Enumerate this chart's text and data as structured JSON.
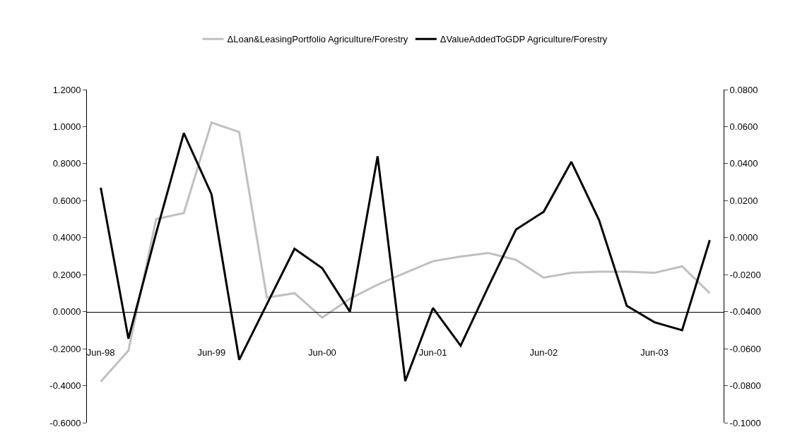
{
  "chart_data": {
    "type": "line",
    "categories": [
      "Jun-98",
      null,
      null,
      null,
      "Jun-99",
      null,
      null,
      null,
      "Jun-00",
      null,
      null,
      null,
      "Jun-01",
      null,
      null,
      null,
      "Jun-02",
      null,
      null,
      null,
      "Jun-03",
      null,
      null
    ],
    "series": [
      {
        "name": "ΔLoan&LeasingPortfolio Agriculture/Forestry",
        "color": "#c0c0c0",
        "values": [
          -0.378,
          -0.21,
          0.5,
          0.533,
          1.022,
          0.971,
          0.076,
          0.1,
          -0.032,
          0.07,
          0.146,
          0.21,
          0.273,
          0.298,
          0.317,
          0.28,
          0.184,
          0.21,
          0.216,
          0.216,
          0.21,
          0.245,
          0.1
        ]
      },
      {
        "name": "ΔValueAddedToGDP Agriculture/Forestry",
        "color": "#000000",
        "axis": "y2",
        "values": [
          0.027,
          -0.0546,
          0.0024,
          0.0565,
          0.0235,
          -0.066,
          -0.036,
          -0.006,
          -0.0165,
          -0.04,
          0.044,
          -0.0775,
          -0.038,
          -0.0584,
          -0.0265,
          0.0044,
          0.014,
          0.041,
          0.0095,
          -0.0368,
          -0.0457,
          -0.05,
          -0.0013
        ]
      }
    ],
    "ylim": [
      -0.6,
      1.2
    ],
    "yticks": [
      {
        "value": -0.6,
        "label": "-0.6000"
      },
      {
        "value": -0.4,
        "label": "-0.4000"
      },
      {
        "value": -0.2,
        "label": "-0.2000"
      },
      {
        "value": 0,
        "label": "0.0000"
      },
      {
        "value": 0.2,
        "label": "0.2000"
      },
      {
        "value": 0.4,
        "label": "0.4000"
      },
      {
        "value": 0.6,
        "label": "0.6000"
      },
      {
        "value": 0.8,
        "label": "0.8000"
      },
      {
        "value": 1.0,
        "label": "1.0000"
      },
      {
        "value": 1.2,
        "label": "1.2000"
      }
    ],
    "y2lim": [
      -0.1,
      0.08
    ],
    "y2ticks": [
      {
        "value": -0.1,
        "label": "-0.1000"
      },
      {
        "value": -0.08,
        "label": "-0.0800"
      },
      {
        "value": -0.06,
        "label": "-0.0600"
      },
      {
        "value": -0.04,
        "label": "-0.0400"
      },
      {
        "value": -0.02,
        "label": "-0.0200"
      },
      {
        "value": 0,
        "label": "0.0000"
      },
      {
        "value": 0.02,
        "label": "0.0200"
      },
      {
        "value": 0.04,
        "label": "0.0400"
      },
      {
        "value": 0.06,
        "label": "0.0600"
      },
      {
        "value": 0.08,
        "label": "0.0800"
      }
    ],
    "legend": "top",
    "marker": "none",
    "line_style": "solid"
  }
}
